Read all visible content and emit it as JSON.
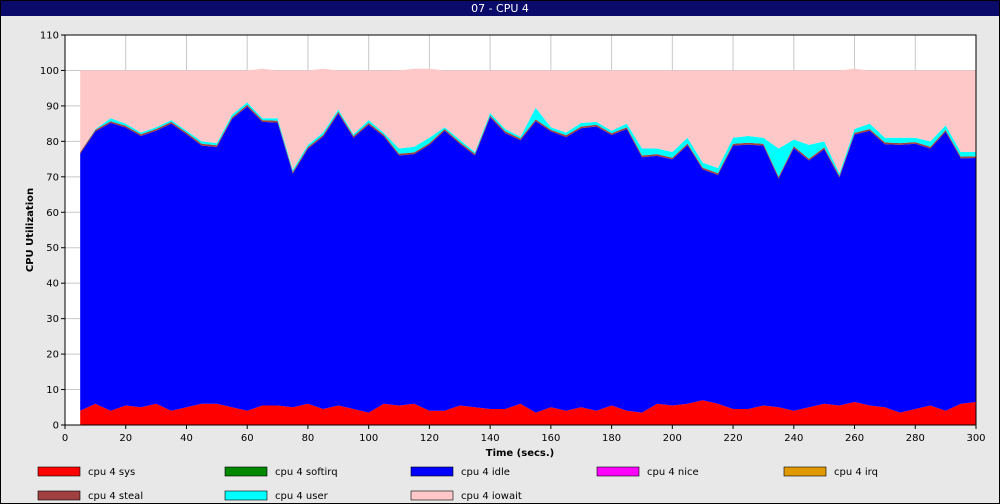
{
  "window": {
    "title": "07 - CPU 4"
  },
  "chart_data": {
    "type": "area",
    "stacked": true,
    "xlabel": "Time (secs.)",
    "ylabel": "CPU Utilization",
    "xlim": [
      0,
      300
    ],
    "ylim": [
      0,
      110
    ],
    "x_ticks": [
      0,
      20,
      40,
      60,
      80,
      100,
      120,
      140,
      160,
      180,
      200,
      220,
      240,
      260,
      280,
      300
    ],
    "y_ticks": [
      0,
      10,
      20,
      30,
      40,
      50,
      60,
      70,
      80,
      90,
      100,
      110
    ],
    "grid": true,
    "legend_position": "bottom",
    "x": [
      5,
      10,
      15,
      20,
      25,
      30,
      35,
      40,
      45,
      50,
      55,
      60,
      65,
      70,
      75,
      80,
      85,
      90,
      95,
      100,
      105,
      110,
      115,
      120,
      125,
      130,
      135,
      140,
      145,
      150,
      155,
      160,
      165,
      170,
      175,
      180,
      185,
      190,
      195,
      200,
      205,
      210,
      215,
      220,
      225,
      230,
      235,
      240,
      245,
      250,
      255,
      260,
      265,
      270,
      275,
      280,
      285,
      290,
      295,
      300
    ],
    "series": [
      {
        "name": "cpu 4 sys",
        "color": "#ff0000",
        "values": [
          4,
          6,
          4,
          5.5,
          5,
          6,
          4,
          5,
          6,
          6,
          5,
          4,
          5.5,
          5.5,
          5,
          6,
          4.5,
          5.5,
          4.5,
          3.5,
          6,
          5.5,
          6,
          4,
          4,
          5.5,
          5,
          4.5,
          4.5,
          6,
          3.5,
          5,
          4,
          5,
          4,
          5.5,
          4,
          3.5,
          6,
          5.5,
          6,
          7,
          6,
          4.5,
          4.5,
          5.5,
          5,
          4,
          5,
          6,
          5.5,
          6.5,
          5.5,
          5,
          3.5,
          4.5,
          5.5,
          4,
          6,
          6.5
        ]
      },
      {
        "name": "cpu 4 softirq",
        "color": "#008800",
        "values": [
          0,
          0,
          0,
          0,
          0,
          0,
          0,
          0,
          0,
          0,
          0,
          0,
          0,
          0,
          0,
          0,
          0,
          0,
          0,
          0,
          0,
          0,
          0,
          0,
          0,
          0,
          0,
          0,
          0,
          0,
          0,
          0,
          0,
          0,
          0,
          0,
          0,
          0,
          0,
          0,
          0,
          0,
          0,
          0,
          0,
          0,
          0,
          0,
          0,
          0,
          0,
          0,
          0,
          0,
          0,
          0,
          0,
          0,
          0,
          0
        ]
      },
      {
        "name": "cpu 4 idle",
        "color": "#0000ff",
        "values": [
          72.5,
          76.8,
          81.2,
          78.4,
          76.5,
          77,
          81,
          77,
          72.8,
          72.4,
          81.3,
          85.8,
          80,
          79.8,
          65.9,
          71.9,
          76.8,
          82.4,
          76.5,
          81.2,
          75.4,
          70.5,
          70.4,
          75,
          79,
          73.8,
          71,
          82.3,
          77.8,
          74.3,
          82.2,
          77.8,
          77.2,
          78.7,
          80.2,
          76.3,
          79.5,
          72,
          69.9,
          69.4,
          72.9,
          65.1,
          64.5,
          74.3,
          74.6,
          73.3,
          64.5,
          74.1,
          69.6,
          71.8,
          64.3,
          75.4,
          77.5,
          74.2,
          75.5,
          74.8,
          72.5,
          78.7,
          69.2,
          68.8
        ]
      },
      {
        "name": "cpu 4 nice",
        "color": "#ff00ff",
        "values": [
          0,
          0,
          0,
          0,
          0,
          0,
          0,
          0,
          0,
          0,
          0,
          0,
          0,
          0,
          0,
          0,
          0,
          0,
          0,
          0,
          0,
          0,
          0,
          0,
          0,
          0,
          0,
          0,
          0,
          0,
          0,
          0,
          0,
          0,
          0,
          0,
          0,
          0,
          0,
          0,
          0,
          0,
          0,
          0,
          0,
          0,
          0,
          0,
          0,
          0,
          0,
          0,
          0,
          0,
          0,
          0,
          0,
          0,
          0,
          0
        ]
      },
      {
        "name": "cpu 4 irq",
        "color": "#e09a00",
        "values": [
          0,
          0,
          0,
          0,
          0,
          0,
          0,
          0,
          0,
          0,
          0,
          0,
          0,
          0,
          0,
          0,
          0,
          0,
          0,
          0,
          0,
          0,
          0,
          0,
          0,
          0,
          0,
          0,
          0,
          0,
          0,
          0,
          0,
          0,
          0,
          0,
          0,
          0,
          0,
          0,
          0,
          0,
          0,
          0,
          0,
          0,
          0,
          0,
          0,
          0,
          0,
          0,
          0,
          0,
          0,
          0,
          0,
          0,
          0,
          0
        ]
      },
      {
        "name": "cpu 4 steal",
        "color": "#a04040",
        "values": [
          0.5,
          0.5,
          0.5,
          0.5,
          0.5,
          0.5,
          0.5,
          0.5,
          0.5,
          0.5,
          0.5,
          0.5,
          0.5,
          0.5,
          0.5,
          0.5,
          0.5,
          0.5,
          0.5,
          0.5,
          0.5,
          0.5,
          0.5,
          0.5,
          0.5,
          0.5,
          0.5,
          0.5,
          0.5,
          0.5,
          0.5,
          0.5,
          0.5,
          0.5,
          0.5,
          0.5,
          0.5,
          0.5,
          0.5,
          0.5,
          0.5,
          0.5,
          0.5,
          0.5,
          0.5,
          0.5,
          0.5,
          0.5,
          0.5,
          0.5,
          0.5,
          0.5,
          0.5,
          0.5,
          0.5,
          0.5,
          0.5,
          0.5,
          0.5,
          0.5
        ]
      },
      {
        "name": "cpu 4 user",
        "color": "#00ffff",
        "values": [
          0,
          0.2,
          0.8,
          0.6,
          0.5,
          0.5,
          0.5,
          0.5,
          0.7,
          0.6,
          0.7,
          0.7,
          0.5,
          0.7,
          0.6,
          0.6,
          0.7,
          0.6,
          0.5,
          0.8,
          0.5,
          1.5,
          1.6,
          1.5,
          0.5,
          0.7,
          0.5,
          0.7,
          0.7,
          0.5,
          3.3,
          0.7,
          0.8,
          1,
          0.8,
          0.7,
          1,
          2,
          1.6,
          1.6,
          1.6,
          1.4,
          1.5,
          1.7,
          1.9,
          1.7,
          8,
          1.9,
          3.9,
          1.7,
          0.7,
          1.1,
          1.5,
          1.3,
          1.5,
          1.2,
          1.5,
          1.3,
          1.3,
          1.2
        ]
      },
      {
        "name": "cpu 4 iowait",
        "color": "#ffc8c8",
        "values": [
          23,
          16.5,
          13.5,
          15,
          17.5,
          16,
          14,
          17,
          20,
          20.5,
          12.5,
          9,
          14,
          13.5,
          28,
          21,
          18,
          11,
          18,
          14,
          17.5,
          22,
          22,
          19.5,
          16,
          19.5,
          23,
          12,
          16.5,
          18.7,
          10.5,
          16,
          17.5,
          14.8,
          14.5,
          17,
          15,
          22,
          22,
          23,
          19,
          26,
          27.5,
          19,
          18.5,
          19,
          22,
          19.5,
          21,
          20,
          29,
          17,
          15,
          19,
          19,
          19,
          20,
          15.5,
          23,
          23
        ]
      }
    ]
  }
}
